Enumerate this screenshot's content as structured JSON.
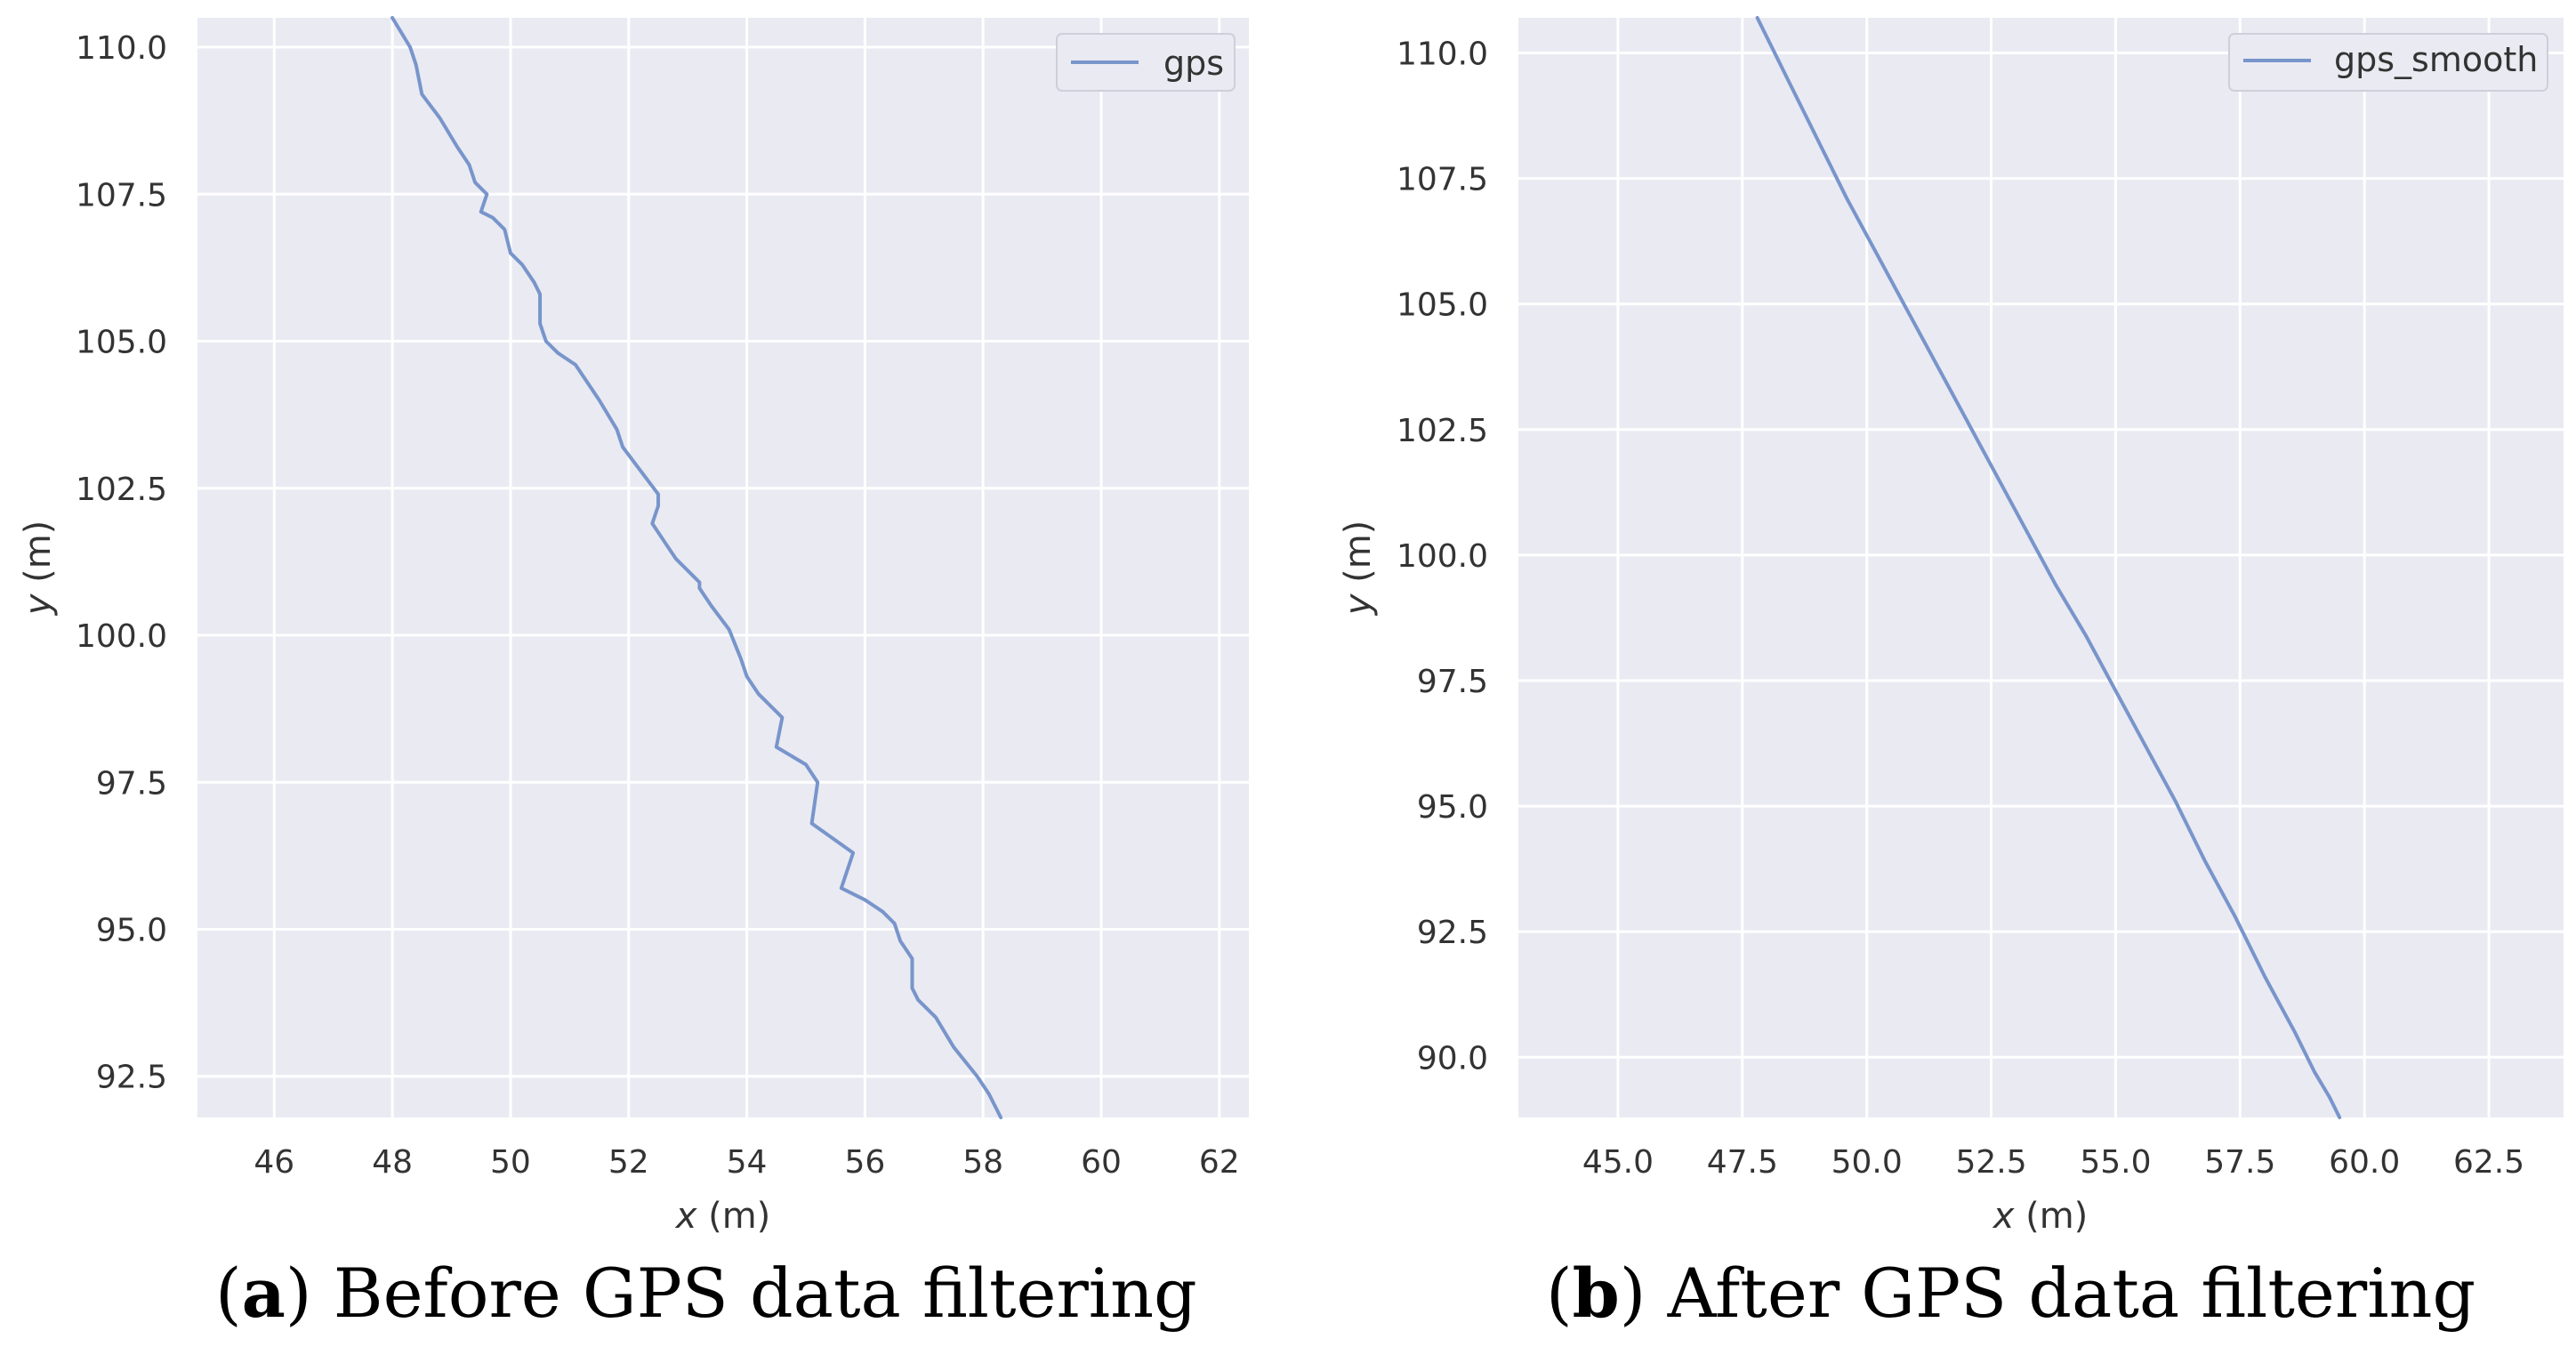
{
  "chart_data": [
    {
      "type": "line",
      "panel_letter": "a",
      "caption": "Before GPS data filtering",
      "xlabel_var": "x",
      "xlabel_unit": " (m)",
      "ylabel_var": "y",
      "ylabel_unit": " (m)",
      "xlim": [
        44.7,
        62.5
      ],
      "ylim": [
        91.8,
        110.5
      ],
      "xticks": [
        46,
        48,
        50,
        52,
        54,
        56,
        58,
        60,
        62
      ],
      "xtick_labels": [
        "46",
        "48",
        "50",
        "52",
        "54",
        "56",
        "58",
        "60",
        "62"
      ],
      "yticks": [
        92.5,
        95.0,
        97.5,
        100.0,
        102.5,
        105.0,
        107.5,
        110.0
      ],
      "ytick_labels": [
        "92.5",
        "95.0",
        "97.5",
        "100.0",
        "102.5",
        "105.0",
        "107.5",
        "110.0"
      ],
      "grid": true,
      "legend": "top-right",
      "series": [
        {
          "name": "gps",
          "color": "#7895cb",
          "x": [
            48.0,
            48.3,
            48.4,
            48.5,
            48.8,
            49.1,
            49.3,
            49.4,
            49.6,
            49.5,
            49.7,
            49.9,
            50.0,
            50.2,
            50.4,
            50.5,
            50.5,
            50.6,
            50.8,
            51.1,
            51.5,
            51.8,
            51.9,
            52.2,
            52.5,
            52.5,
            52.4,
            52.6,
            52.8,
            53.1,
            53.2,
            53.2,
            53.4,
            53.7,
            53.9,
            54.0,
            54.2,
            54.5,
            54.6,
            54.5,
            55.0,
            55.2,
            55.1,
            55.8,
            55.6,
            56.0,
            56.3,
            56.5,
            56.6,
            56.8,
            56.8,
            56.8,
            56.9,
            57.2,
            57.5,
            57.9,
            58.1,
            58.3
          ],
          "y": [
            110.5,
            110.0,
            109.7,
            109.2,
            108.8,
            108.3,
            108.0,
            107.7,
            107.5,
            107.2,
            107.1,
            106.9,
            106.5,
            106.3,
            106.0,
            105.8,
            105.3,
            105.0,
            104.8,
            104.6,
            104.0,
            103.5,
            103.2,
            102.8,
            102.4,
            102.2,
            101.9,
            101.6,
            101.3,
            101.0,
            100.9,
            100.8,
            100.5,
            100.1,
            99.6,
            99.3,
            99.0,
            98.7,
            98.6,
            98.1,
            97.8,
            97.5,
            96.8,
            96.3,
            95.7,
            95.5,
            95.3,
            95.1,
            94.8,
            94.5,
            94.2,
            94.0,
            93.8,
            93.5,
            93.0,
            92.5,
            92.2,
            91.8
          ]
        }
      ]
    },
    {
      "type": "line",
      "panel_letter": "b",
      "caption": "After GPS data filtering",
      "xlabel_var": "x",
      "xlabel_unit": " (m)",
      "ylabel_var": "y",
      "ylabel_unit": " (m)",
      "xlim": [
        43.0,
        64.0
      ],
      "ylim": [
        88.8,
        110.7
      ],
      "xticks": [
        45.0,
        47.5,
        50.0,
        52.5,
        55.0,
        57.5,
        60.0,
        62.5
      ],
      "xtick_labels": [
        "45.0",
        "47.5",
        "50.0",
        "52.5",
        "55.0",
        "57.5",
        "60.0",
        "62.5"
      ],
      "yticks": [
        90.0,
        92.5,
        95.0,
        97.5,
        100.0,
        102.5,
        105.0,
        107.5,
        110.0
      ],
      "ytick_labels": [
        "90.0",
        "92.5",
        "95.0",
        "97.5",
        "100.0",
        "102.5",
        "105.0",
        "107.5",
        "110.0"
      ],
      "grid": true,
      "legend": "top-right",
      "series": [
        {
          "name": "gps_smooth",
          "color": "#7895cb",
          "x": [
            47.8,
            48.4,
            49.0,
            49.6,
            50.2,
            50.8,
            51.4,
            52.0,
            52.6,
            53.2,
            53.8,
            54.4,
            55.0,
            55.6,
            56.2,
            56.8,
            57.4,
            58.0,
            58.6,
            59.0,
            59.3,
            59.5
          ],
          "y": [
            110.7,
            109.5,
            108.3,
            107.1,
            106.0,
            104.9,
            103.8,
            102.7,
            101.6,
            100.5,
            99.4,
            98.4,
            97.3,
            96.2,
            95.1,
            93.9,
            92.8,
            91.6,
            90.5,
            89.7,
            89.2,
            88.8
          ]
        }
      ]
    }
  ]
}
